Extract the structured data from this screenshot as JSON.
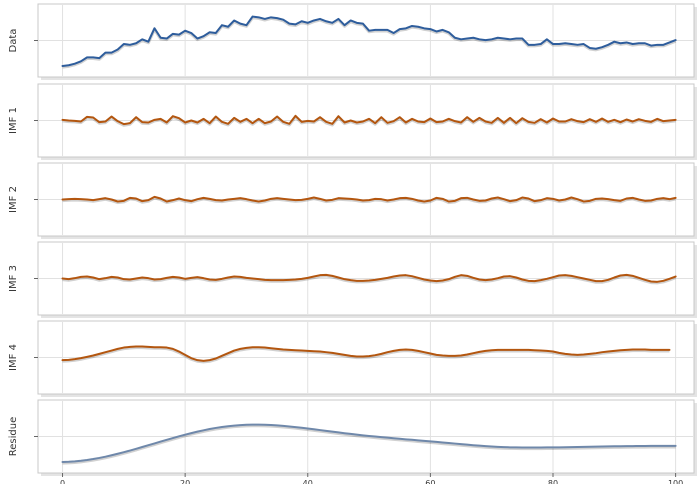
{
  "chart_data": {
    "type": "line",
    "layout": "stacked-panels",
    "title": "",
    "xlabel": "",
    "xlim": [
      -4,
      103
    ],
    "xticks": [
      0,
      20,
      40,
      60,
      80,
      100
    ],
    "grid": true,
    "panels": [
      {
        "label": "Data",
        "ytick": "",
        "color": "#2e5d9c",
        "ylim": [
          -14,
          79
        ],
        "values": [
          0,
          1,
          3,
          6,
          11,
          11,
          10,
          17,
          17,
          21,
          28,
          27,
          29,
          34,
          31,
          48,
          36,
          35,
          41,
          40,
          45,
          42,
          35,
          38,
          43,
          42,
          52,
          50,
          58,
          54,
          52,
          63,
          62,
          60,
          62,
          61,
          59,
          54,
          53,
          57,
          55,
          58,
          60,
          57,
          55,
          60,
          52,
          58,
          55,
          54,
          45,
          46,
          46,
          46,
          42,
          47,
          48,
          51,
          50,
          48,
          47,
          44,
          46,
          43,
          36,
          34,
          35,
          36,
          34,
          33,
          34,
          36,
          35,
          34,
          35,
          35,
          27,
          27,
          28,
          34,
          28,
          28,
          29,
          28,
          27,
          28,
          23,
          22,
          24,
          27,
          31,
          29,
          30,
          28,
          29,
          29,
          26,
          27,
          27,
          30,
          33
        ]
      },
      {
        "label": "IMF 1",
        "ytick": "",
        "color": "#b3560f",
        "ylim": [
          -11,
          11
        ],
        "values": [
          0.2,
          0.0,
          -0.1,
          -0.3,
          1.1,
          0.9,
          -0.5,
          -0.3,
          1.2,
          -0.2,
          -1.1,
          -0.8,
          1.0,
          -0.5,
          -0.6,
          0.2,
          0.5,
          -0.6,
          1.3,
          0.7,
          -0.6,
          0.0,
          -0.6,
          0.5,
          -0.8,
          1.2,
          -0.4,
          -1.0,
          0.8,
          -0.4,
          0.5,
          -0.8,
          0.5,
          -0.8,
          -0.3,
          1.2,
          -0.4,
          -1.0,
          1.4,
          -0.4,
          -0.1,
          -0.3,
          1.0,
          -0.4,
          -1.0,
          1.3,
          -0.6,
          0.0,
          -0.6,
          -0.3,
          0.5,
          -0.8,
          1.0,
          -0.7,
          -0.2,
          1.0,
          -0.6,
          0.5,
          -0.3,
          -0.5,
          0.6,
          -0.5,
          -0.3,
          0.5,
          -0.2,
          -0.6,
          1.0,
          -0.4,
          0.8,
          -0.3,
          -0.7,
          0.8,
          -0.7,
          0.8,
          -0.8,
          0.7,
          -0.4,
          -0.7,
          0.4,
          -0.6,
          0.6,
          -0.3,
          -0.3,
          0.4,
          -0.2,
          -0.5,
          0.4,
          -0.4,
          0.6,
          -0.4,
          0.2,
          -0.5,
          0.3,
          -0.3,
          0.4,
          -0.1,
          -0.4,
          0.5,
          -0.2,
          0.0,
          0.2
        ]
      },
      {
        "label": "IMF 2",
        "ytick": "",
        "color": "#b3560f",
        "ylim": [
          -11,
          11
        ],
        "values": [
          0.0,
          0.1,
          0.2,
          0.1,
          0.0,
          -0.2,
          0.1,
          0.4,
          0.0,
          -0.6,
          -0.4,
          0.5,
          0.3,
          -0.5,
          -0.2,
          0.8,
          0.3,
          -0.6,
          -0.2,
          0.3,
          -0.2,
          -0.5,
          0.1,
          0.5,
          0.2,
          -0.2,
          -0.3,
          0.0,
          0.2,
          0.4,
          0.1,
          -0.3,
          -0.6,
          -0.3,
          0.2,
          0.4,
          0.2,
          0.0,
          -0.2,
          -0.1,
          0.2,
          0.6,
          0.2,
          -0.3,
          -0.1,
          0.4,
          0.3,
          0.2,
          0.0,
          -0.3,
          -0.2,
          0.2,
          0.1,
          -0.3,
          0.0,
          0.4,
          0.5,
          0.2,
          -0.3,
          -0.6,
          -0.3,
          0.5,
          0.2,
          -0.6,
          -0.4,
          0.4,
          0.5,
          0.0,
          -0.4,
          -0.3,
          0.3,
          0.6,
          0.1,
          -0.5,
          -0.2,
          0.6,
          0.3,
          -0.5,
          -0.2,
          0.4,
          0.2,
          -0.3,
          0.0,
          0.6,
          0.1,
          -0.6,
          -0.4,
          0.2,
          0.3,
          0.1,
          -0.2,
          -0.4,
          0.3,
          0.5,
          0.0,
          -0.4,
          -0.3,
          0.2,
          0.4,
          0.1,
          0.5
        ]
      },
      {
        "label": "IMF 3",
        "ytick": "",
        "color": "#b3560f",
        "ylim": [
          -11,
          11
        ],
        "values": [
          0.0,
          -0.2,
          0.1,
          0.5,
          0.6,
          0.3,
          -0.2,
          0.1,
          0.5,
          0.3,
          -0.2,
          -0.3,
          0.0,
          0.3,
          0.1,
          -0.3,
          -0.2,
          0.2,
          0.5,
          0.3,
          -0.1,
          0.2,
          0.4,
          0.1,
          -0.3,
          -0.4,
          -0.1,
          0.3,
          0.6,
          0.5,
          0.2,
          0.0,
          -0.2,
          -0.4,
          -0.5,
          -0.5,
          -0.5,
          -0.4,
          -0.3,
          -0.1,
          0.2,
          0.6,
          1.0,
          1.1,
          0.8,
          0.3,
          -0.2,
          -0.5,
          -0.7,
          -0.7,
          -0.6,
          -0.4,
          -0.1,
          0.2,
          0.6,
          0.9,
          1.0,
          0.7,
          0.2,
          -0.3,
          -0.6,
          -0.8,
          -0.6,
          -0.2,
          0.5,
          1.0,
          0.8,
          0.2,
          -0.3,
          -0.5,
          -0.3,
          0.1,
          0.6,
          0.7,
          0.3,
          -0.3,
          -0.7,
          -0.8,
          -0.5,
          -0.1,
          0.4,
          0.9,
          1.0,
          0.8,
          0.4,
          0.0,
          -0.4,
          -0.8,
          -0.8,
          -0.4,
          0.3,
          0.9,
          1.1,
          0.8,
          0.2,
          -0.4,
          -0.9,
          -1.0,
          -0.7,
          -0.1,
          0.6
        ]
      },
      {
        "label": "IMF 4",
        "ytick": "",
        "color": "#b3560f",
        "ylim": [
          -11,
          11
        ],
        "values": [
          -0.8,
          -0.7,
          -0.5,
          -0.2,
          0.2,
          0.6,
          1.1,
          1.6,
          2.1,
          2.6,
          3.0,
          3.2,
          3.3,
          3.3,
          3.2,
          3.1,
          3.1,
          3.0,
          2.6,
          1.8,
          0.8,
          -0.2,
          -0.8,
          -1.0,
          -0.8,
          -0.3,
          0.5,
          1.3,
          2.1,
          2.6,
          2.9,
          3.1,
          3.1,
          3.0,
          2.8,
          2.6,
          2.4,
          2.3,
          2.2,
          2.1,
          2.0,
          1.9,
          1.8,
          1.6,
          1.4,
          1.1,
          0.8,
          0.5,
          0.3,
          0.3,
          0.4,
          0.7,
          1.1,
          1.6,
          2.0,
          2.3,
          2.4,
          2.3,
          2.0,
          1.6,
          1.2,
          0.8,
          0.6,
          0.5,
          0.5,
          0.6,
          0.9,
          1.3,
          1.7,
          2.0,
          2.2,
          2.3,
          2.3,
          2.3,
          2.3,
          2.3,
          2.3,
          2.2,
          2.1,
          2.0,
          1.8,
          1.4,
          1.1,
          0.9,
          0.8,
          0.9,
          1.1,
          1.3,
          1.6,
          1.8,
          2.0,
          2.2,
          2.3,
          2.4,
          2.4,
          2.4,
          2.3,
          2.3,
          2.3,
          2.3
        ]
      },
      {
        "label": "Residue",
        "ytick": "",
        "color": "#6f88aa",
        "ylim": [
          -14,
          79
        ],
        "values": [
          0.0,
          0.3,
          0.8,
          1.6,
          2.6,
          3.8,
          5.2,
          6.8,
          8.6,
          10.5,
          12.5,
          14.6,
          16.8,
          19.1,
          21.4,
          23.7,
          26.0,
          28.3,
          30.5,
          32.7,
          34.8,
          36.8,
          38.7,
          40.4,
          42.0,
          43.4,
          44.6,
          45.6,
          46.4,
          47.0,
          47.4,
          47.6,
          47.6,
          47.4,
          47.1,
          46.6,
          46.0,
          45.3,
          44.5,
          43.6,
          42.7,
          41.7,
          40.7,
          39.7,
          38.7,
          37.7,
          36.7,
          35.8,
          34.9,
          34.0,
          33.2,
          32.5,
          31.7,
          31.0,
          30.3,
          29.6,
          28.9,
          28.3,
          27.6,
          26.9,
          26.3,
          25.6,
          24.9,
          24.2,
          23.5,
          22.8,
          22.1,
          21.4,
          20.8,
          20.2,
          19.7,
          19.3,
          19.0,
          18.7,
          18.6,
          18.5,
          18.5,
          18.5,
          18.5,
          18.6,
          18.6,
          18.7,
          18.8,
          19.0,
          19.1,
          19.3,
          19.4,
          19.6,
          19.7,
          19.9,
          20.0,
          20.1,
          20.2,
          20.3,
          20.4,
          20.4,
          20.5,
          20.5,
          20.5,
          20.5,
          20.5
        ]
      }
    ]
  }
}
